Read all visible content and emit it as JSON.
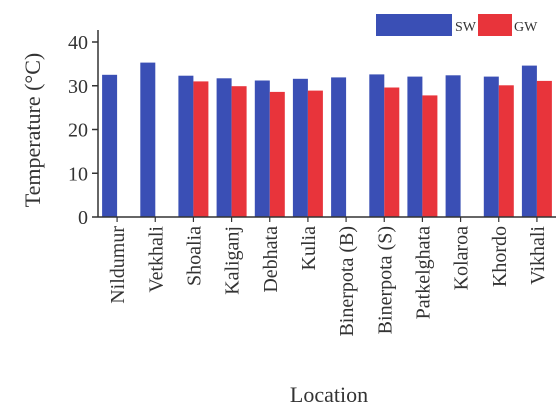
{
  "chart_data": {
    "type": "bar",
    "title": "",
    "xlabel": "Location",
    "ylabel": "Temperature (°C)",
    "ylim": [
      0,
      40
    ],
    "yticks": [
      0,
      10,
      20,
      30,
      40
    ],
    "grid": false,
    "legend_position": "top-right",
    "categories": [
      "Nildumur",
      "Vetkhali",
      "Shoalia",
      "Kaliganj",
      "Debhata",
      "Kulia",
      "Binerpota (B)",
      "Binerpota (S)",
      "Patkelghata",
      "Kolaroa",
      "Khordo",
      "Vikhali"
    ],
    "series": [
      {
        "name": "SW",
        "color": "#3a4fb5",
        "values": [
          32.5,
          35.3,
          32.3,
          31.7,
          31.2,
          31.6,
          31.9,
          32.6,
          32.1,
          32.4,
          32.1,
          34.6
        ]
      },
      {
        "name": "GW",
        "color": "#e8343b",
        "values": [
          null,
          null,
          31.0,
          29.9,
          28.6,
          28.9,
          null,
          29.6,
          27.8,
          null,
          30.1,
          31.1
        ]
      }
    ]
  }
}
